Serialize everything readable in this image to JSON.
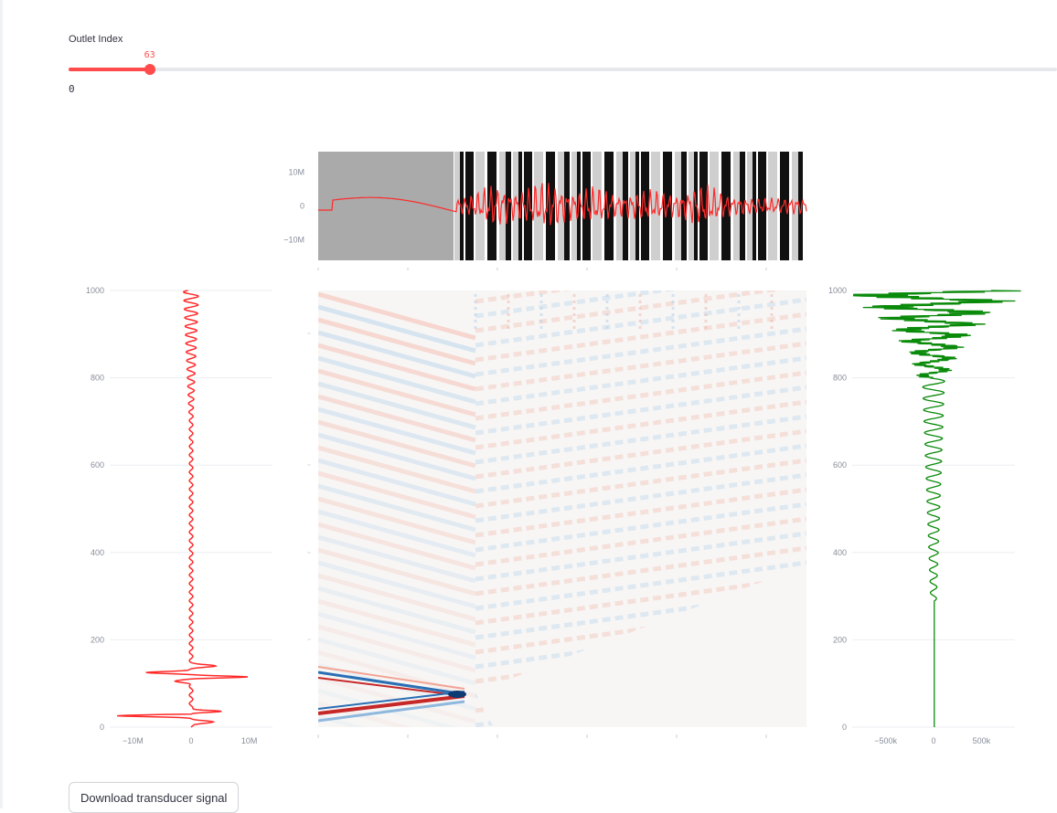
{
  "slider": {
    "label": "Outlet Index",
    "value": 63,
    "value_label": "63",
    "min_label": "0",
    "fraction": 0.082,
    "accent_color": "#ff4b4b"
  },
  "buttons": {
    "download_label": "Download transducer signal"
  },
  "chart_data": [
    {
      "id": "top",
      "type": "line",
      "color": "#ff2a2a",
      "ylim": [
        -16000000,
        16000000
      ],
      "y_ticks": [
        10000000,
        0,
        -10000000
      ],
      "y_tick_labels": [
        "10M",
        "0",
        "−10M"
      ],
      "xlabel": "",
      "ylabel": "",
      "background_bands": true
    },
    {
      "id": "left",
      "type": "line",
      "color": "#ff2a2a",
      "orientation": "vertical",
      "xlim": [
        -14000000,
        14000000
      ],
      "ylim": [
        0,
        1000
      ],
      "x_ticks": [
        -10000000,
        0,
        10000000
      ],
      "x_tick_labels": [
        "−10M",
        "0",
        "10M"
      ],
      "y_ticks": [
        0,
        200,
        400,
        600,
        800,
        1000
      ],
      "y_tick_labels": [
        "0",
        "200",
        "400",
        "600",
        "800",
        "1000"
      ],
      "xlabel": "",
      "ylabel": ""
    },
    {
      "id": "center",
      "type": "heatmap",
      "colormap": "diverging red-blue",
      "xlabel": "",
      "ylabel": ""
    },
    {
      "id": "right",
      "type": "line",
      "color": "#0a8a0a",
      "orientation": "vertical",
      "xlim": [
        -850000,
        850000
      ],
      "ylim": [
        0,
        1000
      ],
      "x_ticks": [
        -500000,
        0,
        500000
      ],
      "x_tick_labels": [
        "−500k",
        "0",
        "500k"
      ],
      "y_ticks": [
        0,
        200,
        400,
        600,
        800,
        1000
      ],
      "y_tick_labels": [
        "0",
        "200",
        "400",
        "600",
        "800",
        "1000"
      ],
      "xlabel": "",
      "ylabel": ""
    }
  ]
}
